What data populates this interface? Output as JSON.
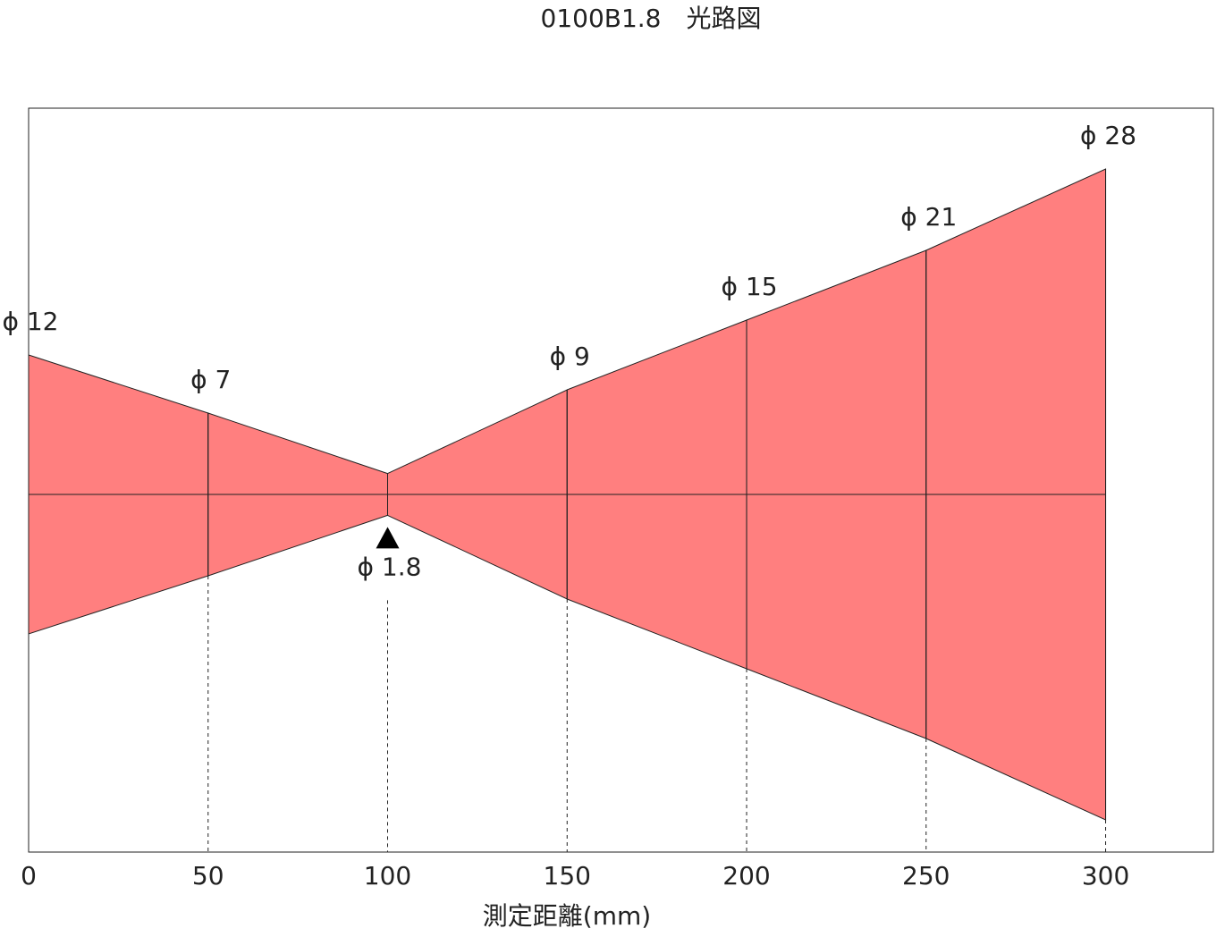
{
  "chart_data": {
    "type": "beam",
    "title": "0100B1.8　光路図",
    "x_label": "測定距離(mm)",
    "x": [
      0,
      50,
      100,
      150,
      200,
      250,
      300
    ],
    "values": [
      12,
      7,
      1.8,
      9,
      15,
      21,
      28
    ],
    "value_labels": [
      "ϕ 12",
      "ϕ 7",
      "ϕ 1.8",
      "ϕ 9",
      "ϕ 15",
      "ϕ 21",
      "ϕ 28"
    ],
    "color": "#ff7f7f",
    "xlim": [
      0,
      330
    ],
    "xticks": [
      0,
      50,
      100,
      150,
      200,
      250,
      300
    ]
  }
}
